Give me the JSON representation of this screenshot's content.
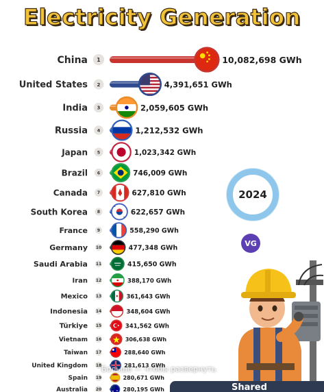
{
  "title": "Electricity Generation",
  "year": "2024",
  "logo_text": "VG",
  "overlay_hint": "Больше — чтобы развернуть",
  "shared_label": "Shared",
  "chart_data": {
    "type": "bar",
    "orientation": "horizontal",
    "unit": "GWh",
    "title": "Electricity Generation",
    "categories": [
      "China",
      "United States",
      "India",
      "Russia",
      "Japan",
      "Brazil",
      "Canada",
      "South Korea",
      "France",
      "Germany",
      "Saudi Arabia",
      "Iran",
      "Mexico",
      "Indonesia",
      "Türkiye",
      "Vietnam",
      "Taiwan",
      "United Kingdom",
      "Spain",
      "Australia"
    ],
    "ranks": [
      "1",
      "2",
      "3",
      "4",
      "5",
      "6",
      "7",
      "8",
      "9",
      "10",
      "11",
      "12",
      "13",
      "14",
      "15",
      "16",
      "17",
      "18",
      "19",
      "20"
    ],
    "values": [
      10082698,
      4391651,
      2059605,
      1212532,
      1023342,
      746009,
      627810,
      622657,
      558290,
      477348,
      415650,
      388170,
      361643,
      348604,
      341562,
      306638,
      288640,
      281613,
      280671,
      280195
    ],
    "value_labels": [
      "10,082,698 GWh",
      "4,391,651 GWh",
      "2,059,605 GWh",
      "1,212,532 GWh",
      "1,023,342 GWh",
      "746,009 GWh",
      "627,810 GWh",
      "622,657 GWh",
      "558,290 GWh",
      "477,348 GWh",
      "415,650 GWh",
      "388,170 GWh",
      "361,643 GWh",
      "348,604 GWh",
      "341,562 GWh",
      "306,638 GWh",
      "288,640 GWh",
      "281,613 GWh",
      "280,671 GWh",
      "280,195 GWh"
    ],
    "bar_colors": [
      "#c8332e",
      "#2f4a8e",
      "#e98b2a",
      "#2f5fb8",
      "#c4243f",
      "#2f9f4f",
      "#d33a3a",
      "#3a5fc0",
      "#3a5fc0",
      "#333333",
      "#2a8a4a",
      "#2a9a56",
      "#2a8a5a",
      "#c8332e",
      "#d33a3a",
      "#d33a3a",
      "#c8332e",
      "#2f4a8e",
      "#d8a030",
      "#2f4a8e"
    ],
    "flags": [
      "china",
      "usa",
      "india",
      "russia",
      "japan",
      "brazil",
      "canada",
      "south-korea",
      "france",
      "germany",
      "saudi-arabia",
      "iran",
      "mexico",
      "indonesia",
      "turkiye",
      "vietnam",
      "taiwan",
      "uk",
      "spain",
      "australia"
    ]
  }
}
